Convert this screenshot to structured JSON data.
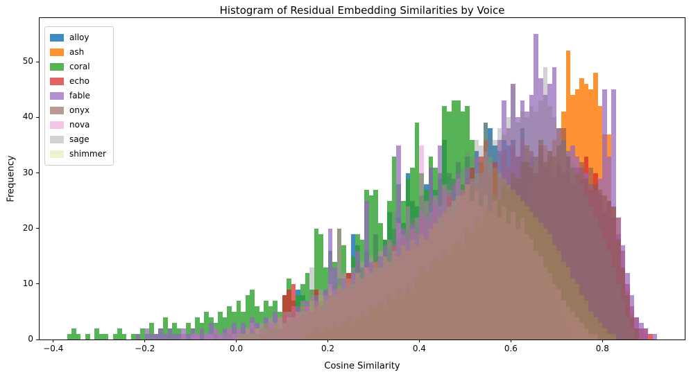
{
  "chart_data": {
    "type": "bar",
    "subtype": "overlapping-histogram",
    "title": "Histogram of Residual Embedding Similarities by Voice",
    "xlabel": "Cosine Similarity",
    "ylabel": "Frequency",
    "xlim": [
      -0.43,
      0.98
    ],
    "ylim": [
      0,
      57.9
    ],
    "xticks": [
      -0.4,
      -0.2,
      0.0,
      0.2,
      0.4,
      0.6,
      0.8
    ],
    "xtick_labels": [
      "−0.4",
      "−0.2",
      "0.0",
      "0.2",
      "0.4",
      "0.6",
      "0.8"
    ],
    "yticks": [
      0,
      10,
      20,
      30,
      40,
      50
    ],
    "ytick_labels": [
      "0",
      "10",
      "20",
      "30",
      "40",
      "50"
    ],
    "bin_width": 0.01,
    "grid": false,
    "legend_position": "upper left",
    "series": [
      {
        "name": "alloy",
        "color": "#1f77b4",
        "alpha": 0.85,
        "bin_start": 0.05,
        "counts": [
          1,
          0,
          1,
          2,
          1,
          2,
          3,
          2,
          9,
          8,
          4,
          5,
          6,
          5,
          7,
          6,
          8,
          11,
          9,
          10,
          19,
          17,
          13,
          16,
          14,
          19,
          15,
          18,
          23,
          20,
          22,
          21,
          30,
          25,
          24,
          26,
          28,
          31,
          27,
          29,
          36,
          30,
          29,
          32,
          28,
          33,
          31,
          34,
          32,
          39,
          38,
          35,
          34,
          36,
          35,
          36,
          33,
          38,
          32,
          33,
          28,
          24,
          20,
          15,
          11,
          7,
          4,
          2
        ]
      },
      {
        "name": "ash",
        "color": "#ff7f0e",
        "alpha": 0.85,
        "bin_start": 0.35,
        "counts": [
          1,
          1,
          2,
          1,
          2,
          3,
          2,
          4,
          3,
          5,
          4,
          6,
          5,
          7,
          8,
          9,
          8,
          11,
          10,
          13,
          12,
          15,
          14,
          17,
          16,
          20,
          19,
          23,
          25,
          28,
          30,
          33,
          35,
          34,
          36,
          38,
          41,
          52,
          44,
          45,
          47,
          46,
          45,
          48,
          42,
          37,
          37,
          24,
          22,
          13,
          9,
          5,
          2,
          2,
          1
        ]
      },
      {
        "name": "coral",
        "color": "#2ca02c",
        "alpha": 0.8,
        "bin_start": -0.37,
        "counts": [
          1,
          2,
          1,
          0,
          1,
          0,
          2,
          1,
          1,
          0,
          1,
          2,
          1,
          0,
          1,
          1,
          2,
          1,
          3,
          1,
          2,
          4,
          2,
          3,
          2,
          1,
          3,
          2,
          4,
          3,
          5,
          4,
          3,
          5,
          4,
          6,
          5,
          7,
          5,
          8,
          9,
          6,
          5,
          7,
          6,
          7,
          5,
          8,
          11,
          7,
          8,
          10,
          12,
          9,
          20,
          19,
          13,
          16,
          14,
          20,
          17,
          12,
          15,
          19,
          18,
          27,
          26,
          27,
          21,
          18,
          25,
          33,
          28,
          25,
          29,
          31,
          39,
          30,
          27,
          33,
          31,
          30,
          42,
          41,
          43,
          43,
          41,
          42,
          36,
          27,
          26,
          21,
          16,
          10,
          8,
          5,
          4,
          3,
          2,
          1
        ]
      },
      {
        "name": "echo",
        "color": "#d62728",
        "alpha": 0.72,
        "bin_start": 0.05,
        "counts": [
          1,
          1,
          2,
          1,
          2,
          8,
          9,
          10,
          5,
          4,
          6,
          5,
          9,
          6,
          5,
          8,
          7,
          9,
          8,
          12,
          9,
          11,
          10,
          13,
          11,
          14,
          12,
          14,
          13,
          17,
          15,
          18,
          16,
          20,
          17,
          22,
          19,
          21,
          24,
          20,
          23,
          26,
          22,
          25,
          27,
          29,
          31,
          28,
          33,
          36,
          30,
          32,
          29,
          34,
          31,
          35,
          33,
          36,
          32,
          34,
          30,
          35,
          31,
          33,
          29,
          32,
          30,
          33,
          28,
          31,
          29,
          33,
          27,
          30,
          26,
          23,
          25,
          22,
          19,
          16,
          10,
          6,
          4,
          2,
          2,
          1
        ]
      },
      {
        "name": "fable",
        "color": "#9467bd",
        "alpha": 0.72,
        "bin_start": -0.22,
        "counts": [
          1,
          0,
          2,
          1,
          1,
          2,
          1,
          2,
          1,
          1,
          2,
          1,
          2,
          1,
          2,
          1,
          3,
          2,
          1,
          2,
          2,
          3,
          2,
          3,
          2,
          4,
          3,
          2,
          4,
          3,
          5,
          4,
          3,
          5,
          4,
          6,
          5,
          7,
          5,
          8,
          6,
          9,
          20,
          13,
          9,
          11,
          10,
          12,
          16,
          11,
          25,
          14,
          13,
          15,
          17,
          14,
          16,
          35,
          20,
          18,
          21,
          19,
          23,
          22,
          31,
          25,
          35,
          27,
          24,
          28,
          30,
          27,
          31,
          29,
          33,
          30,
          34,
          32,
          26,
          36,
          43,
          38,
          46,
          40,
          43,
          41,
          44,
          55,
          47,
          44,
          46,
          49,
          38,
          36,
          34,
          35,
          33,
          31,
          30,
          28,
          27,
          29,
          45,
          33,
          45,
          22,
          17,
          12,
          8,
          4,
          3,
          2,
          0,
          1
        ]
      },
      {
        "name": "onyx",
        "color": "#8c564b",
        "alpha": 0.6,
        "bin_start": 0.15,
        "counts": [
          1,
          1,
          2,
          1,
          2,
          2,
          3,
          2,
          3,
          4,
          3,
          4,
          5,
          4,
          6,
          6,
          7,
          6,
          8,
          7,
          9,
          8,
          10,
          9,
          11,
          13,
          12,
          14,
          15,
          14,
          16,
          15,
          17,
          18,
          17,
          20,
          19,
          22,
          21,
          24,
          23,
          26,
          25,
          28,
          27,
          30,
          29,
          32,
          35,
          31,
          33,
          36,
          32,
          34,
          33,
          35,
          38,
          33,
          31,
          30,
          32,
          29,
          31,
          28,
          27,
          26,
          25,
          24,
          18,
          13,
          8,
          4,
          2
        ]
      },
      {
        "name": "nova",
        "color": "#e377c2",
        "alpha": 0.42,
        "bin_start": -0.12,
        "counts": [
          1,
          0,
          1,
          1,
          0,
          1,
          1,
          2,
          1,
          1,
          2,
          1,
          2,
          1,
          2,
          3,
          2,
          3,
          2,
          4,
          3,
          4,
          5,
          4,
          6,
          5,
          7,
          6,
          8,
          7,
          9,
          8,
          10,
          9,
          20,
          12,
          11,
          13,
          12,
          14,
          13,
          15,
          14,
          16,
          15,
          18,
          17,
          21,
          19,
          24,
          20,
          22,
          35,
          25,
          23,
          26,
          24,
          28,
          27,
          25,
          29,
          26,
          28,
          25,
          27,
          24,
          26,
          23,
          25,
          22,
          24,
          21,
          23,
          20,
          22,
          19,
          18,
          16,
          15,
          13,
          12,
          10,
          9,
          7,
          6,
          5,
          4,
          3,
          2,
          1,
          1
        ]
      },
      {
        "name": "sage",
        "color": "#7f7f7f",
        "alpha": 0.35,
        "bin_start": -0.05,
        "counts": [
          1,
          0,
          1,
          1,
          0,
          1,
          2,
          1,
          2,
          1,
          2,
          3,
          2,
          3,
          2,
          4,
          3,
          5,
          4,
          6,
          5,
          13,
          8,
          7,
          9,
          8,
          10,
          9,
          11,
          10,
          12,
          16,
          13,
          12,
          14,
          19,
          15,
          17,
          16,
          23,
          18,
          20,
          19,
          22,
          21,
          24,
          23,
          26,
          25,
          28,
          27,
          30,
          29,
          32,
          31,
          34,
          33,
          36,
          35,
          39,
          37,
          36,
          38,
          37,
          40,
          46,
          39,
          41,
          40,
          42,
          41,
          43,
          49,
          42,
          40,
          38,
          36,
          34,
          32,
          30,
          28,
          26,
          24,
          22,
          20,
          18,
          16,
          13,
          10,
          7,
          4,
          2
        ]
      },
      {
        "name": "shimmer",
        "color": "#bcbd22",
        "alpha": 0.22,
        "bin_start": 0.0,
        "counts": [
          1,
          1,
          2,
          1,
          2,
          2,
          3,
          2,
          3,
          4,
          3,
          5,
          4,
          5,
          6,
          5,
          7,
          6,
          8,
          7,
          9,
          8,
          10,
          9,
          11,
          10,
          12,
          11,
          13,
          12,
          14,
          13,
          15,
          14,
          16,
          15,
          17,
          16,
          18,
          17,
          19,
          18,
          20,
          21,
          22,
          23,
          24,
          25,
          26,
          27,
          28,
          29,
          30,
          32,
          39,
          33,
          31,
          30,
          29,
          28,
          27,
          26,
          25,
          24,
          23,
          22,
          21,
          20,
          19,
          17,
          16,
          14,
          13,
          11,
          10,
          8,
          7,
          5,
          4,
          3,
          2,
          1,
          1
        ]
      }
    ]
  }
}
